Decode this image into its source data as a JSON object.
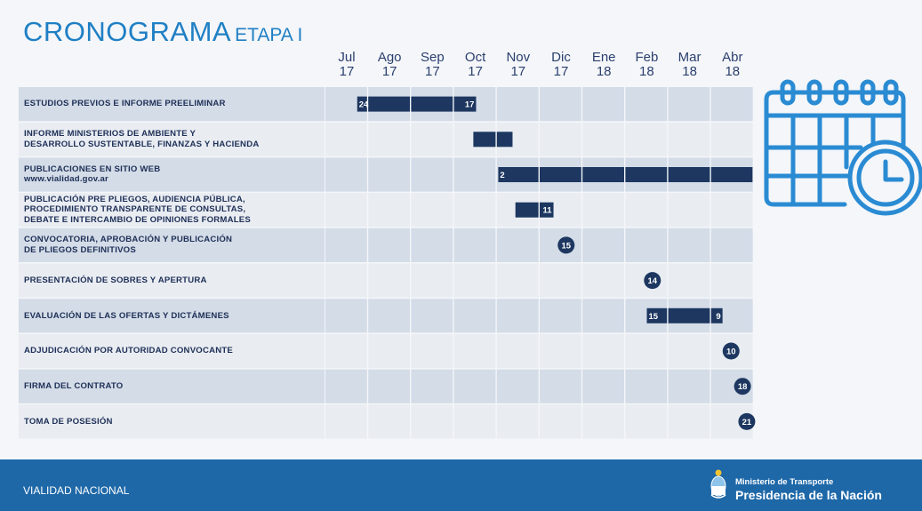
{
  "header": {
    "title": "CRONOGRAMA",
    "subtitle": "ETAPA I"
  },
  "colors": {
    "title": "#1f7fc4",
    "bar": "#1d3760",
    "row_dark": "#d3dce7",
    "row_light": "#e9edf2",
    "footer": "#1e68a8",
    "icon": "#2a8bd3"
  },
  "icon": "calendar-clock-icon",
  "chart_data": {
    "type": "gantt",
    "months": [
      {
        "m": "Jul",
        "y": "17"
      },
      {
        "m": "Ago",
        "y": "17"
      },
      {
        "m": "Sep",
        "y": "17"
      },
      {
        "m": "Oct",
        "y": "17"
      },
      {
        "m": "Nov",
        "y": "17"
      },
      {
        "m": "Dic",
        "y": "17"
      },
      {
        "m": "Ene",
        "y": "18"
      },
      {
        "m": "Feb",
        "y": "18"
      },
      {
        "m": "Mar",
        "y": "18"
      },
      {
        "m": "Abr",
        "y": "18"
      }
    ],
    "tasks": [
      {
        "label": "ESTUDIOS PREVIOS E INFORME PREELIMINAR",
        "start": "2017-07-24",
        "end": "2017-10-17",
        "start_label": "24",
        "end_label": "17"
      },
      {
        "label": "INFORME MINISTERIOS DE AMBIENTE Y\nDESARROLLO SUSTENTABLE, FINANZAS Y HACIENDA",
        "start": "2017-10-15",
        "end": "2017-11-12",
        "start_label": "",
        "end_label": ""
      },
      {
        "label": "PUBLICACIONES EN SITIO WEB\nwww.vialidad.gov.ar",
        "start": "2017-11-02",
        "end": "2018-04-30",
        "start_label": "2",
        "end_label": ""
      },
      {
        "label": "PUBLICACIÓN PRE PLIEGOS, AUDIENCIA PÚBLICA,\nPROCEDIMIENTO TRANSPARENTE DE CONSULTAS,\nDEBATE E INTERCAMBIO DE OPINIONES FORMALES",
        "start": "2017-11-14",
        "end": "2017-12-11",
        "start_label": "",
        "end_label": "11"
      },
      {
        "label": "CONVOCATORIA, APROBACIÓN Y PUBLICACIÓN\nDE PLIEGOS DEFINITIVOS",
        "milestone": "2017-12-15",
        "milestone_label": "15"
      },
      {
        "label": "PRESENTACIÓN DE SOBRES Y APERTURA",
        "milestone": "2018-02-14",
        "milestone_label": "14"
      },
      {
        "label": "EVALUACIÓN DE LAS OFERTAS Y DICTÁMENES",
        "start": "2018-02-15",
        "end": "2018-04-09",
        "start_label": "15",
        "end_label": "9"
      },
      {
        "label": "ADJUDICACIÓN POR AUTORIDAD CONVOCANTE",
        "milestone": "2018-04-10",
        "milestone_label": "10"
      },
      {
        "label": "FIRMA DEL CONTRATO",
        "milestone": "2018-04-18",
        "milestone_label": "18"
      },
      {
        "label": "TOMA DE POSESIÓN",
        "milestone": "2018-04-21",
        "milestone_label": "21"
      }
    ]
  },
  "footer": {
    "left": "VIALIDAD NACIONAL",
    "ministry": "Ministerio de Transporte",
    "presidency": "Presidencia de la Nación"
  }
}
